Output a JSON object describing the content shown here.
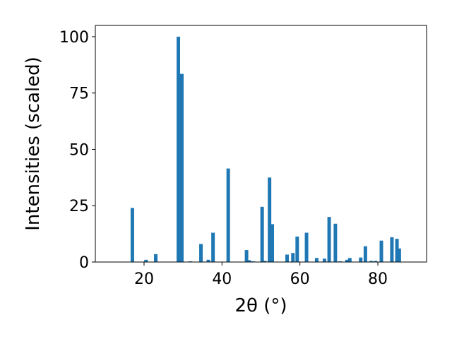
{
  "chart_data": {
    "type": "bar",
    "xlabel": "2θ (°)",
    "ylabel": "Intensities (scaled)",
    "xlim": [
      7.5,
      92.5
    ],
    "ylim": [
      0,
      105
    ],
    "xticks": [
      20,
      40,
      60,
      80
    ],
    "yticks": [
      0,
      25,
      50,
      75,
      100
    ],
    "bar_width": 0.9,
    "bar_color": "#1f77b4",
    "grid": false,
    "bars": [
      {
        "x": 17.0,
        "y": 24.0
      },
      {
        "x": 20.5,
        "y": 1.0
      },
      {
        "x": 23.0,
        "y": 3.5
      },
      {
        "x": 28.8,
        "y": 100.0
      },
      {
        "x": 29.7,
        "y": 83.5
      },
      {
        "x": 31.9,
        "y": 0.3
      },
      {
        "x": 34.6,
        "y": 8.0
      },
      {
        "x": 36.5,
        "y": 1.0
      },
      {
        "x": 37.7,
        "y": 13.0
      },
      {
        "x": 41.6,
        "y": 41.5
      },
      {
        "x": 46.3,
        "y": 5.3
      },
      {
        "x": 47.0,
        "y": 0.8
      },
      {
        "x": 48.0,
        "y": 0.3
      },
      {
        "x": 50.3,
        "y": 24.5
      },
      {
        "x": 51.0,
        "y": 0.5
      },
      {
        "x": 52.2,
        "y": 37.5
      },
      {
        "x": 52.9,
        "y": 16.8
      },
      {
        "x": 56.7,
        "y": 3.3
      },
      {
        "x": 58.2,
        "y": 4.0
      },
      {
        "x": 59.3,
        "y": 11.3
      },
      {
        "x": 61.7,
        "y": 13.0
      },
      {
        "x": 64.3,
        "y": 1.8
      },
      {
        "x": 66.3,
        "y": 1.5
      },
      {
        "x": 67.5,
        "y": 20.0
      },
      {
        "x": 69.1,
        "y": 17.0
      },
      {
        "x": 70.3,
        "y": 0.3
      },
      {
        "x": 72.1,
        "y": 1.0
      },
      {
        "x": 72.8,
        "y": 1.8
      },
      {
        "x": 75.6,
        "y": 2.0
      },
      {
        "x": 76.8,
        "y": 7.0
      },
      {
        "x": 78.3,
        "y": 0.5
      },
      {
        "x": 79.4,
        "y": 0.5
      },
      {
        "x": 80.9,
        "y": 9.5
      },
      {
        "x": 83.6,
        "y": 11.0
      },
      {
        "x": 84.9,
        "y": 10.3
      },
      {
        "x": 85.5,
        "y": 6.0
      }
    ]
  }
}
